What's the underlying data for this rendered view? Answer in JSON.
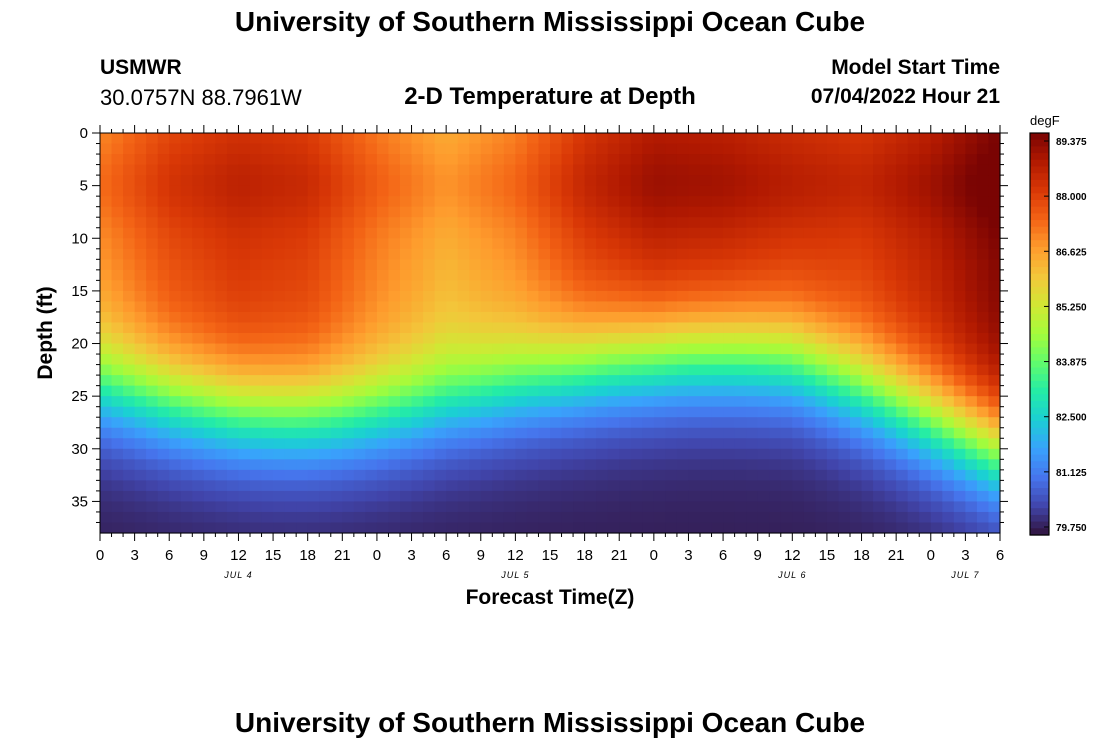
{
  "header": {
    "title": "University of Southern Mississippi Ocean Cube",
    "station": "USMWR",
    "coords": "30.0757N  88.7961W",
    "plot_title": "2-D Temperature at Depth",
    "model_label": "Model Start Time",
    "model_time": "07/04/2022 Hour 21"
  },
  "footer": {
    "title": "University of Southern Mississippi Ocean Cube"
  },
  "chart_data": {
    "type": "heatmap",
    "title": "2-D Temperature at Depth",
    "xlabel": "Forecast Time(Z)",
    "ylabel": "Depth (ft)",
    "x_tick_labels": [
      "0",
      "3",
      "6",
      "9",
      "12",
      "15",
      "18",
      "21",
      "0",
      "3",
      "6",
      "9",
      "12",
      "15",
      "18",
      "21",
      "0",
      "3",
      "6",
      "9",
      "12",
      "15",
      "18",
      "21",
      "0",
      "3",
      "6"
    ],
    "x_range_hours": [
      0,
      78
    ],
    "day_labels": [
      {
        "label": "JUL 4",
        "hour": 12
      },
      {
        "label": "JUL 5",
        "hour": 36
      },
      {
        "label": "JUL 6",
        "hour": 60
      },
      {
        "label": "JUL 7",
        "hour": 75
      }
    ],
    "y_ticks": [
      0,
      5,
      10,
      15,
      20,
      25,
      30,
      35
    ],
    "ylim": [
      38,
      0
    ],
    "colorbar": {
      "units": "degF",
      "ticks": [
        "89.375",
        "88.000",
        "86.625",
        "85.250",
        "83.875",
        "82.500",
        "81.125",
        "79.750"
      ],
      "min": 79.75,
      "max": 89.375,
      "colors": [
        "#30123b",
        "#4145ab",
        "#4675ed",
        "#39a2fc",
        "#1bcfd4",
        "#24eca6",
        "#61fc6c",
        "#a4fc3b",
        "#d1e834",
        "#f3c63a",
        "#fe9b2d",
        "#f36315",
        "#d93806",
        "#b11901",
        "#7a0403"
      ]
    },
    "surface_temps_degF": [
      {
        "hour": 0,
        "t": 86.8
      },
      {
        "hour": 6,
        "t": 87.7
      },
      {
        "hour": 12,
        "t": 88.1
      },
      {
        "hour": 18,
        "t": 87.9
      },
      {
        "hour": 24,
        "t": 87.0
      },
      {
        "hour": 30,
        "t": 86.3
      },
      {
        "hour": 36,
        "t": 86.9
      },
      {
        "hour": 42,
        "t": 88.0
      },
      {
        "hour": 48,
        "t": 88.6
      },
      {
        "hour": 54,
        "t": 88.5
      },
      {
        "hour": 60,
        "t": 88.2
      },
      {
        "hour": 66,
        "t": 88.0
      },
      {
        "hour": 72,
        "t": 88.5
      },
      {
        "hour": 78,
        "t": 89.3
      }
    ],
    "bottom_temp_degF": 79.9
  }
}
